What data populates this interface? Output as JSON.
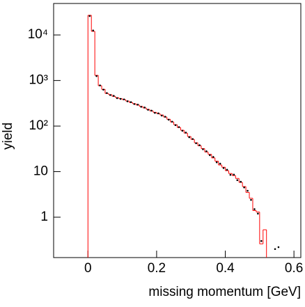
{
  "chart_data": {
    "type": "histogram",
    "xlabel": "missing momentum [GeV]",
    "ylabel": "yield",
    "y_scale": "log",
    "bins": [
      0,
      0.01,
      0.02,
      0.03,
      0.04,
      0.05,
      0.06,
      0.07,
      0.08,
      0.09,
      0.1,
      0.11,
      0.12,
      0.13,
      0.14,
      0.15,
      0.16,
      0.17,
      0.18,
      0.19,
      0.2,
      0.21,
      0.22,
      0.23,
      0.24,
      0.25,
      0.26,
      0.27,
      0.28,
      0.29,
      0.3,
      0.31,
      0.32,
      0.33,
      0.34,
      0.35,
      0.36,
      0.37,
      0.38,
      0.39,
      0.4,
      0.41,
      0.42,
      0.43,
      0.44,
      0.45,
      0.46,
      0.47,
      0.48,
      0.49,
      0.5,
      0.51,
      0.52,
      0.53,
      0.54,
      0.55,
      0.56
    ],
    "series": [
      {
        "style": "step",
        "color": "#ff0000",
        "values": [
          27000,
          12000,
          1300,
          770,
          640,
          520,
          490,
          450,
          420,
          400,
          380,
          355,
          330,
          310,
          290,
          270,
          250,
          232,
          215,
          200,
          188,
          175,
          158,
          141,
          123,
          107,
          93,
          81,
          70,
          59,
          51,
          43,
          37,
          32,
          27,
          24,
          20,
          17,
          14,
          12.5,
          10.5,
          9.1,
          8.2,
          7.1,
          5.8,
          4.7,
          3.5,
          2.6,
          1.4,
          1.3,
          0.26,
          0.53,
          null,
          null,
          null,
          null
        ]
      },
      {
        "style": "points",
        "color": "#000000",
        "values": [
          26000,
          12500,
          1250,
          780,
          630,
          530,
          480,
          460,
          410,
          395,
          385,
          350,
          335,
          305,
          295,
          265,
          255,
          228,
          218,
          195,
          190,
          170,
          160,
          138,
          125,
          105,
          95,
          79,
          72,
          57,
          52,
          42,
          38,
          31,
          28,
          23,
          21,
          16,
          15,
          12,
          11,
          8.5,
          8.6,
          6.5,
          6.0,
          4.5,
          3.8,
          2.4,
          1.5,
          1.2,
          0.3,
          null,
          null,
          null,
          0.2,
          0.22
        ]
      }
    ],
    "xlim": [
      -0.1,
      0.62
    ],
    "ylim": [
      0.13,
      49000
    ],
    "xticks": [
      0,
      0.2,
      0.4,
      0.6
    ],
    "yticks": [
      1,
      10,
      {
        "value": 100,
        "label": "10²"
      },
      {
        "value": 1000,
        "label": "10³"
      },
      {
        "value": 10000,
        "label": "10⁴"
      }
    ]
  }
}
